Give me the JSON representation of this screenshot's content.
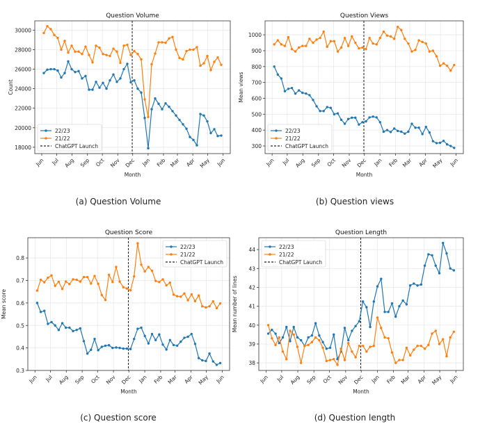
{
  "colors": {
    "s1": "#1f77b4",
    "s2": "#ff7f0e",
    "launch": "#222222"
  },
  "months": [
    "Jun",
    "Jul",
    "Aug",
    "Sep",
    "Oct",
    "Nov",
    "Dec",
    "Jan",
    "Feb",
    "Mar",
    "Apr",
    "May",
    "Jun"
  ],
  "chart_data": [
    {
      "type": "line",
      "title": "Question Volume",
      "xlabel": "Month",
      "ylabel": "Count",
      "caption": "(a) Question Volume",
      "legend": "lower-left",
      "grid": true,
      "ylim": [
        17350,
        30950
      ],
      "yticks": [
        18000,
        20000,
        22000,
        24000,
        26000,
        28000,
        30000
      ],
      "series": [
        {
          "name": "22/23",
          "values": [
            25600,
            25950,
            26000,
            26000,
            25850,
            25150,
            25600,
            26800,
            26000,
            25700,
            25800,
            25050,
            25300,
            23900,
            23900,
            24700,
            24100,
            24600,
            24000,
            24850,
            25450,
            24700,
            25050,
            26000,
            26550,
            24650,
            24850,
            24000,
            23600,
            21000,
            17900,
            21900,
            23000,
            22450,
            21900,
            22500,
            22150,
            21700,
            21250,
            20800,
            20350,
            19900,
            19050,
            18750,
            18200,
            21400,
            21250,
            20650,
            19450,
            19850,
            19150,
            19200
          ]
        },
        {
          "name": "21/22",
          "values": [
            29700,
            30400,
            30100,
            29500,
            29200,
            28000,
            28900,
            27700,
            28400,
            27800,
            27800,
            27550,
            28300,
            27450,
            26700,
            28400,
            28200,
            27550,
            27450,
            27350,
            28100,
            27800,
            26650,
            28400,
            28500,
            27450,
            27850,
            27550,
            27000,
            22900,
            21100,
            26500,
            27600,
            28750,
            28750,
            28700,
            29150,
            29300,
            28000,
            27150,
            27000,
            27850,
            28000,
            28000,
            28250,
            26350,
            26600,
            27350,
            25900,
            26750,
            27200,
            26450
          ]
        }
      ],
      "annotation": "ChatGPT Launch"
    },
    {
      "type": "line",
      "title": "Question Views",
      "xlabel": "Month",
      "ylabel": "Mean views",
      "caption": "(b) Question views",
      "legend": "lower-left",
      "grid": true,
      "ylim": [
        252,
        1088
      ],
      "yticks": [
        300,
        400,
        500,
        600,
        700,
        800,
        900,
        1000
      ],
      "series": [
        {
          "name": "22/23",
          "values": [
            800,
            750,
            725,
            645,
            660,
            665,
            630,
            650,
            635,
            630,
            620,
            590,
            550,
            520,
            520,
            545,
            540,
            500,
            505,
            465,
            440,
            470,
            478,
            478,
            435,
            450,
            455,
            480,
            485,
            480,
            450,
            390,
            400,
            388,
            410,
            395,
            390,
            378,
            390,
            440,
            415,
            415,
            375,
            420,
            385,
            330,
            318,
            320,
            332,
            310,
            300,
            288
          ]
        },
        {
          "name": "21/22",
          "values": [
            940,
            965,
            940,
            930,
            985,
            910,
            895,
            920,
            930,
            930,
            975,
            950,
            970,
            980,
            1020,
            925,
            960,
            960,
            895,
            920,
            980,
            930,
            990,
            950,
            915,
            920,
            910,
            980,
            945,
            940,
            980,
            1020,
            995,
            990,
            975,
            1050,
            1030,
            975,
            945,
            895,
            905,
            965,
            955,
            945,
            895,
            900,
            865,
            805,
            820,
            805,
            775,
            810
          ]
        }
      ],
      "annotation": "ChatGPT Launch"
    },
    {
      "type": "line",
      "title": "Question Score",
      "xlabel": "Month",
      "ylabel": "Mean score",
      "caption": "(c) Question score",
      "legend": "upper-right",
      "grid": true,
      "ylim": [
        0.3,
        0.89
      ],
      "yticks": [
        0.3,
        0.4,
        0.5,
        0.6,
        0.7,
        0.8
      ],
      "series": [
        {
          "name": "22/23",
          "values": [
            0.6,
            0.56,
            0.565,
            0.507,
            0.515,
            0.5,
            0.48,
            0.51,
            0.49,
            0.49,
            0.475,
            0.48,
            0.487,
            0.43,
            0.375,
            0.392,
            0.44,
            0.39,
            0.405,
            0.41,
            0.412,
            0.4,
            0.402,
            0.4,
            0.397,
            0.397,
            0.395,
            0.44,
            0.485,
            0.49,
            0.453,
            0.42,
            0.462,
            0.435,
            0.46,
            0.415,
            0.393,
            0.435,
            0.413,
            0.41,
            0.428,
            0.445,
            0.45,
            0.462,
            0.418,
            0.355,
            0.345,
            0.342,
            0.375,
            0.34,
            0.325,
            0.333
          ]
        },
        {
          "name": "21/22",
          "values": [
            0.655,
            0.703,
            0.692,
            0.712,
            0.722,
            0.676,
            0.694,
            0.662,
            0.695,
            0.684,
            0.705,
            0.703,
            0.695,
            0.715,
            0.715,
            0.686,
            0.72,
            0.685,
            0.635,
            0.613,
            0.725,
            0.693,
            0.76,
            0.695,
            0.67,
            0.664,
            0.656,
            0.718,
            0.865,
            0.77,
            0.74,
            0.76,
            0.743,
            0.698,
            0.693,
            0.705,
            0.678,
            0.69,
            0.637,
            0.63,
            0.628,
            0.642,
            0.612,
            0.638,
            0.608,
            0.633,
            0.585,
            0.58,
            0.585,
            0.607,
            0.577,
            0.598
          ]
        }
      ],
      "annotation": "ChatGPT Launch"
    },
    {
      "type": "line",
      "title": "Question Length",
      "xlabel": "Month",
      "ylabel": "Mean number of lines",
      "caption": "(d) Question length",
      "legend": "upper-left",
      "grid": true,
      "ylim": [
        37.6,
        44.63
      ],
      "yticks": [
        38,
        39,
        40,
        41,
        42,
        43,
        44
      ],
      "series": [
        {
          "name": "22/23",
          "values": [
            39.55,
            39.75,
            39.55,
            39.05,
            39.35,
            39.9,
            39.15,
            39.9,
            39.35,
            39.2,
            38.9,
            39.35,
            39.45,
            40.1,
            39.45,
            39.1,
            38.75,
            38.8,
            39.5,
            38.2,
            38.6,
            39.85,
            39.2,
            39.7,
            39.95,
            40.2,
            41.25,
            40.95,
            39.9,
            41.25,
            42.05,
            42.45,
            40.7,
            40.7,
            41.15,
            40.45,
            41.0,
            41.3,
            41.1,
            42.1,
            42.2,
            42.1,
            42.15,
            43.15,
            43.75,
            43.7,
            43.15,
            42.75,
            44.35,
            43.8,
            43.0,
            42.9
          ]
        },
        {
          "name": "21/22",
          "values": [
            40.0,
            39.3,
            38.95,
            39.35,
            38.6,
            38.2,
            39.7,
            39.5,
            38.85,
            38.0,
            38.9,
            38.95,
            39.1,
            39.35,
            39.2,
            38.8,
            38.1,
            38.15,
            38.2,
            37.9,
            38.75,
            38.15,
            39.05,
            38.6,
            38.3,
            38.9,
            38.9,
            38.6,
            38.85,
            38.9,
            40.4,
            39.85,
            39.35,
            39.3,
            38.55,
            38.0,
            38.15,
            38.15,
            38.8,
            38.4,
            38.7,
            38.9,
            38.9,
            38.75,
            38.95,
            39.55,
            39.7,
            39.0,
            39.25,
            38.35,
            39.35,
            39.65
          ]
        }
      ],
      "annotation": "ChatGPT Launch"
    }
  ]
}
